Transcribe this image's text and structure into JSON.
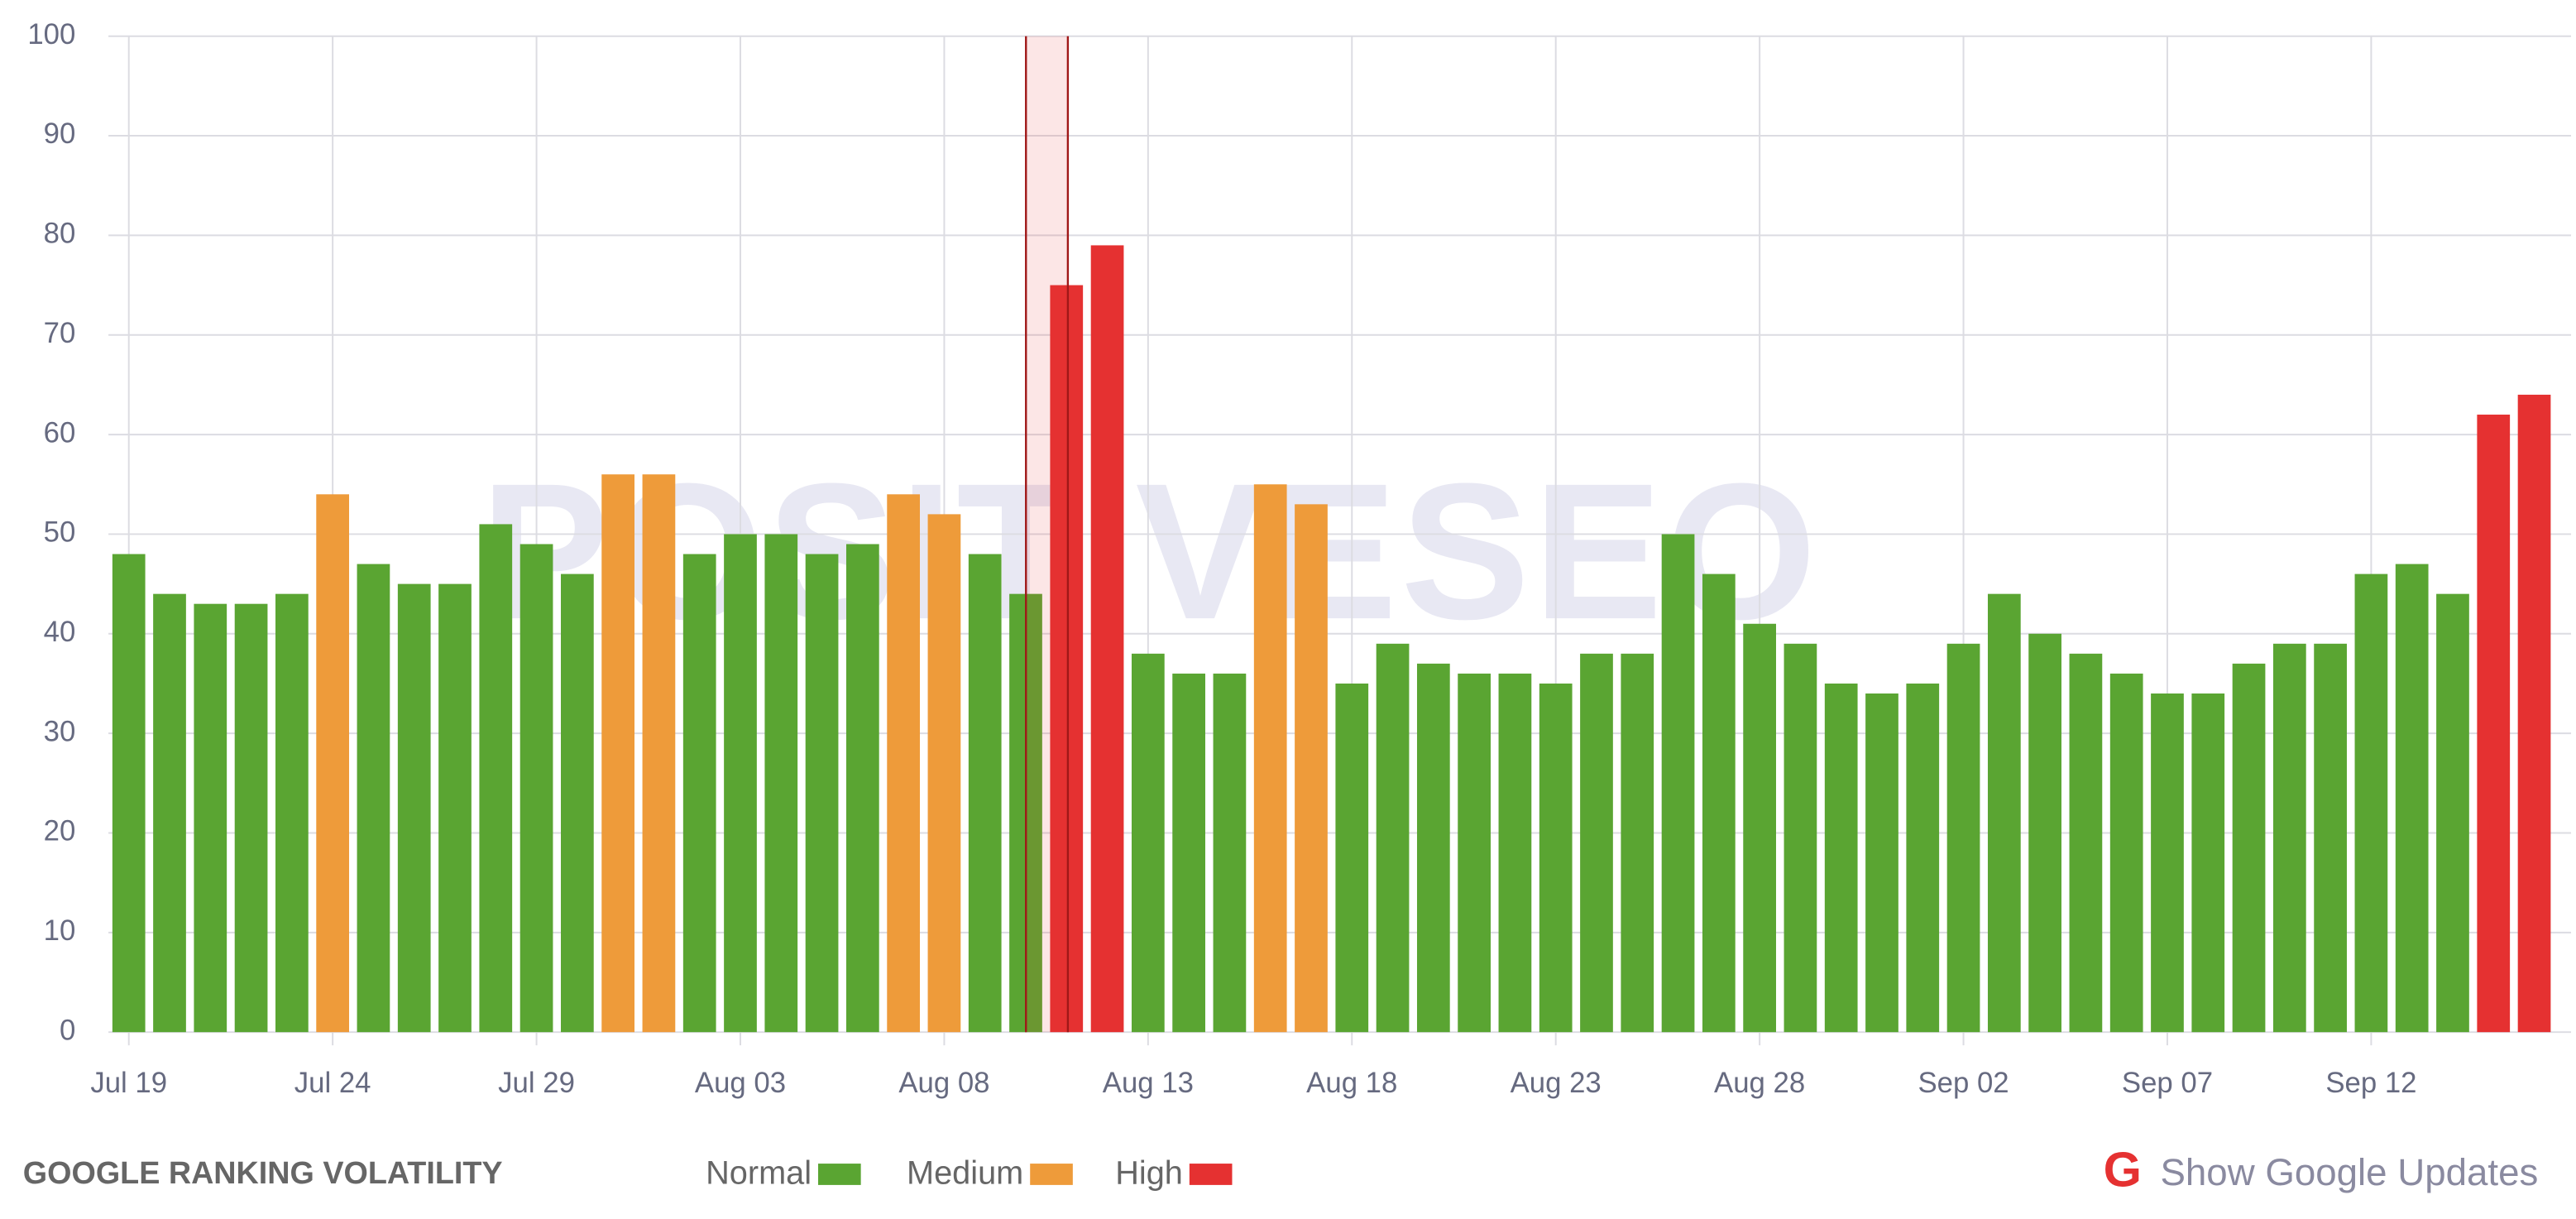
{
  "chart_data": {
    "type": "bar",
    "title": "GOOGLE RANKING VOLATILITY",
    "watermark": "POSITIVESEO",
    "toggle_label": "Show Google Updates",
    "categories": [
      "Jul 19",
      null,
      null,
      null,
      null,
      "Jul 24",
      null,
      null,
      null,
      null,
      "Jul 29",
      null,
      null,
      null,
      null,
      "Aug 03",
      null,
      null,
      null,
      null,
      "Aug 08",
      null,
      null,
      null,
      null,
      "Aug 13",
      null,
      null,
      null,
      null,
      "Aug 18",
      null,
      null,
      null,
      null,
      "Aug 23",
      null,
      null,
      null,
      null,
      "Aug 28",
      null,
      null,
      null,
      null,
      "Sep 02",
      null,
      null,
      null,
      null,
      "Sep 07",
      null,
      null,
      null,
      null,
      "Sep 12",
      null,
      null,
      null,
      null
    ],
    "series": [
      {
        "name": "Normal",
        "color": "#5aa532",
        "values": [
          48,
          44,
          43,
          43,
          44,
          null,
          47,
          45,
          45,
          51,
          49,
          46,
          null,
          null,
          48,
          50,
          50,
          48,
          49,
          null,
          null,
          48,
          44,
          null,
          null,
          38,
          36,
          36,
          null,
          null,
          35,
          39,
          37,
          36,
          36,
          35,
          38,
          38,
          50,
          46,
          41,
          39,
          35,
          34,
          35,
          39,
          44,
          40,
          38,
          36,
          34,
          34,
          37,
          39,
          39,
          46,
          47,
          44,
          null,
          null
        ]
      },
      {
        "name": "Medium",
        "color": "#ee9b3a",
        "values": [
          null,
          null,
          null,
          null,
          null,
          54,
          null,
          null,
          null,
          null,
          null,
          null,
          56,
          56,
          null,
          null,
          null,
          null,
          null,
          54,
          52,
          null,
          null,
          null,
          null,
          null,
          null,
          null,
          55,
          53,
          null,
          null,
          null,
          null,
          null,
          null,
          null,
          null,
          null,
          null,
          null,
          null,
          null,
          null,
          null,
          null,
          null,
          null,
          null,
          null,
          null,
          null,
          null,
          null,
          null,
          null,
          null,
          null,
          null,
          null
        ]
      },
      {
        "name": "High",
        "color": "#e53131",
        "values": [
          null,
          null,
          null,
          null,
          null,
          null,
          null,
          null,
          null,
          null,
          null,
          null,
          null,
          null,
          null,
          null,
          null,
          null,
          null,
          null,
          null,
          null,
          null,
          75,
          79,
          null,
          null,
          null,
          null,
          null,
          null,
          null,
          null,
          null,
          null,
          null,
          null,
          null,
          null,
          null,
          null,
          null,
          null,
          null,
          null,
          null,
          null,
          null,
          null,
          null,
          null,
          null,
          null,
          null,
          null,
          null,
          null,
          null,
          62,
          64
        ]
      }
    ],
    "ylim": [
      0,
      100
    ],
    "yticks": [
      0,
      10,
      20,
      30,
      40,
      50,
      60,
      70,
      80,
      90,
      100
    ],
    "grid": true
  }
}
